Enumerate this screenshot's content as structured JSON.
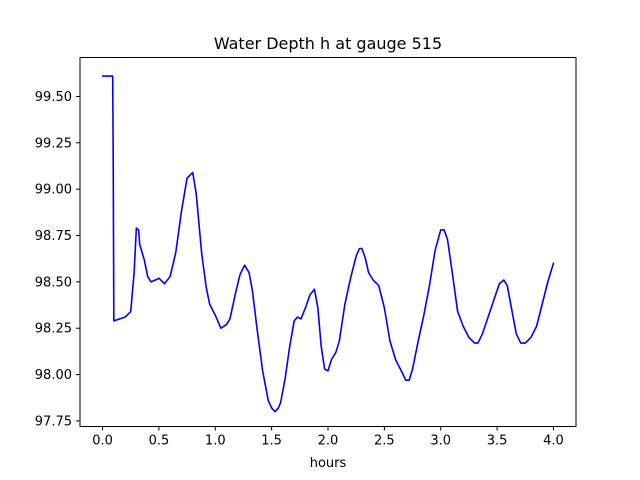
{
  "chart_data": {
    "type": "line",
    "title": "Water Depth h at gauge 515",
    "xlabel": "hours",
    "ylabel": "",
    "xlim": [
      -0.2,
      4.2
    ],
    "ylim": [
      97.72,
      99.71
    ],
    "grid": false,
    "legend": "none",
    "x_ticks": [
      0.0,
      0.5,
      1.0,
      1.5,
      2.0,
      2.5,
      3.0,
      3.5,
      4.0
    ],
    "x_tick_labels": [
      "0.0",
      "0.5",
      "1.0",
      "1.5",
      "2.0",
      "2.5",
      "3.0",
      "3.5",
      "4.0"
    ],
    "y_ticks": [
      97.75,
      98.0,
      98.25,
      98.5,
      98.75,
      99.0,
      99.25,
      99.5
    ],
    "y_tick_labels": [
      "97.75",
      "98.00",
      "98.25",
      "98.50",
      "98.75",
      "99.00",
      "99.25",
      "99.50"
    ],
    "series": [
      {
        "color": "#0000ff",
        "x": [
          0.0,
          0.09,
          0.095,
          0.1,
          0.15,
          0.2,
          0.25,
          0.28,
          0.3,
          0.32,
          0.33,
          0.35,
          0.37,
          0.4,
          0.43,
          0.47,
          0.5,
          0.55,
          0.6,
          0.65,
          0.7,
          0.75,
          0.8,
          0.83,
          0.85,
          0.88,
          0.92,
          0.95,
          1.0,
          1.05,
          1.1,
          1.13,
          1.18,
          1.22,
          1.26,
          1.3,
          1.33,
          1.37,
          1.42,
          1.47,
          1.5,
          1.53,
          1.56,
          1.58,
          1.62,
          1.66,
          1.7,
          1.73,
          1.76,
          1.8,
          1.84,
          1.88,
          1.91,
          1.94,
          1.97,
          2.0,
          2.03,
          2.07,
          2.1,
          2.15,
          2.2,
          2.25,
          2.28,
          2.3,
          2.33,
          2.36,
          2.4,
          2.45,
          2.5,
          2.55,
          2.6,
          2.65,
          2.69,
          2.72,
          2.75,
          2.8,
          2.85,
          2.9,
          2.95,
          3.0,
          3.03,
          3.06,
          3.1,
          3.15,
          3.2,
          3.25,
          3.3,
          3.33,
          3.37,
          3.42,
          3.47,
          3.52,
          3.56,
          3.59,
          3.63,
          3.67,
          3.71,
          3.75,
          3.8,
          3.85,
          3.9,
          3.95,
          4.0
        ],
        "y": [
          99.61,
          99.61,
          99.12,
          98.29,
          98.3,
          98.31,
          98.34,
          98.55,
          98.79,
          98.78,
          98.7,
          98.66,
          98.62,
          98.53,
          98.5,
          98.51,
          98.52,
          98.49,
          98.53,
          98.66,
          98.88,
          99.06,
          99.09,
          98.98,
          98.85,
          98.65,
          98.47,
          98.38,
          98.32,
          98.25,
          98.27,
          98.3,
          98.44,
          98.54,
          98.59,
          98.55,
          98.45,
          98.25,
          98.02,
          97.86,
          97.82,
          97.8,
          97.82,
          97.85,
          97.98,
          98.15,
          98.29,
          98.31,
          98.3,
          98.36,
          98.43,
          98.46,
          98.36,
          98.15,
          98.03,
          98.02,
          98.08,
          98.12,
          98.18,
          98.38,
          98.52,
          98.64,
          98.68,
          98.68,
          98.63,
          98.55,
          98.51,
          98.48,
          98.36,
          98.18,
          98.08,
          98.02,
          97.97,
          97.97,
          98.03,
          98.18,
          98.32,
          98.48,
          98.67,
          98.78,
          98.78,
          98.73,
          98.56,
          98.34,
          98.26,
          98.2,
          98.17,
          98.17,
          98.22,
          98.31,
          98.4,
          98.49,
          98.51,
          98.48,
          98.35,
          98.22,
          98.17,
          98.17,
          98.2,
          98.26,
          98.38,
          98.5,
          98.6
        ]
      }
    ]
  }
}
